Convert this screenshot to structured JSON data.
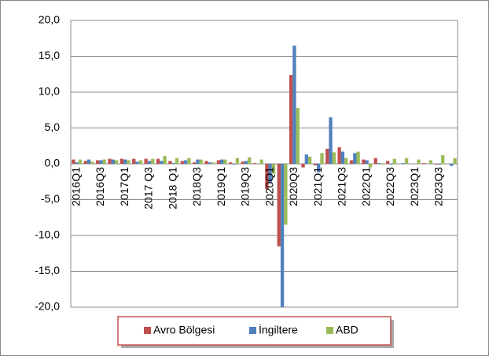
{
  "chart_data": {
    "type": "bar",
    "categories": [
      "2016Q1",
      null,
      "2016Q3",
      null,
      "2017Q1",
      null,
      "2017 Q3",
      null,
      "2018 Q1",
      null,
      "2018Q3",
      null,
      "2019Q1",
      null,
      "2019Q3",
      null,
      "2020Q1",
      null,
      "2020Q3",
      null,
      "2021Q1",
      null,
      "2021Q3",
      null,
      "2022Q1",
      null,
      "2022Q3",
      null,
      "2023Q1",
      null,
      "2023Q3",
      null
    ],
    "series": [
      {
        "name": "Avro Bölgesi",
        "color": "#c0504d",
        "values": [
          0.6,
          0.4,
          0.5,
          0.7,
          0.7,
          0.7,
          0.7,
          0.7,
          0.4,
          0.4,
          0.2,
          0.4,
          0.5,
          0.2,
          0.3,
          0.1,
          -3.5,
          -11.5,
          12.4,
          -0.5,
          -0.2,
          2.1,
          2.3,
          0.5,
          0.6,
          0.8,
          0.4,
          0.0,
          0.0,
          0.1,
          -0.1,
          0.0
        ]
      },
      {
        "name": "İngiltere",
        "color": "#4f81bd",
        "values": [
          0.2,
          0.6,
          0.5,
          0.6,
          0.6,
          0.3,
          0.4,
          0.4,
          0.1,
          0.5,
          0.6,
          0.2,
          0.6,
          -0.1,
          0.4,
          0.0,
          -2.6,
          -20.0,
          16.5,
          1.3,
          -1.2,
          6.5,
          1.7,
          1.5,
          0.5,
          0.1,
          -0.1,
          0.1,
          0.0,
          0.0,
          -0.1,
          -0.3
        ]
      },
      {
        "name": "ABD",
        "color": "#9bbb59",
        "values": [
          0.6,
          0.3,
          0.6,
          0.5,
          0.5,
          0.5,
          0.7,
          1.1,
          0.8,
          0.8,
          0.6,
          0.2,
          0.6,
          0.8,
          0.9,
          0.6,
          -1.4,
          -8.5,
          7.8,
          1.0,
          1.5,
          1.6,
          0.8,
          1.7,
          -0.5,
          -0.1,
          0.7,
          0.8,
          0.6,
          0.5,
          1.2,
          0.8
        ]
      }
    ],
    "ylim": [
      -20,
      20
    ],
    "yticks": [
      {
        "value": -20,
        "label": "-20,0"
      },
      {
        "value": -15,
        "label": "-15,0"
      },
      {
        "value": -10,
        "label": "-10,0"
      },
      {
        "value": -5,
        "label": "-5,0"
      },
      {
        "value": 0,
        "label": "0,0"
      },
      {
        "value": 5,
        "label": "5,0"
      },
      {
        "value": 10,
        "label": "10,0"
      },
      {
        "value": 15,
        "label": "15,0"
      },
      {
        "value": 20,
        "label": "20,0"
      }
    ],
    "grid": true,
    "legend": "bottom"
  }
}
